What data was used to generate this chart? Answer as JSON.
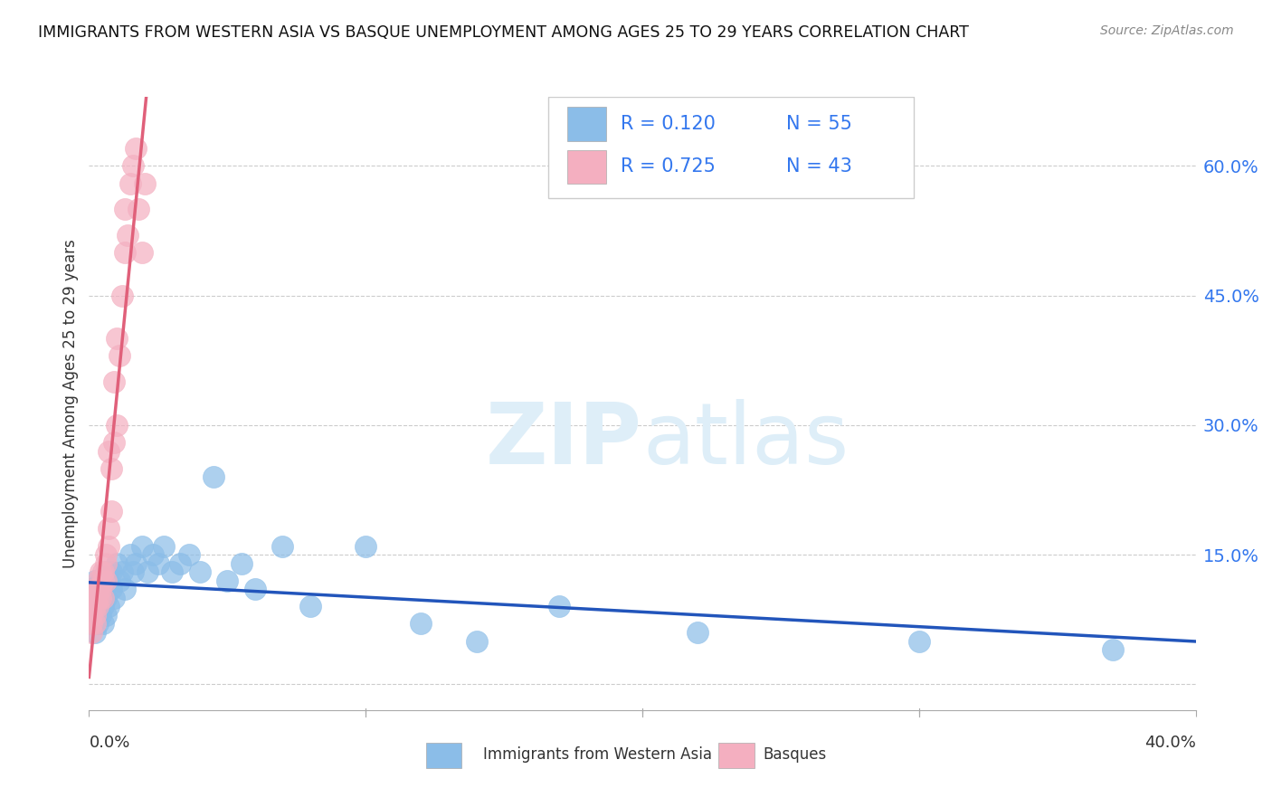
{
  "title": "IMMIGRANTS FROM WESTERN ASIA VS BASQUE UNEMPLOYMENT AMONG AGES 25 TO 29 YEARS CORRELATION CHART",
  "source": "Source: ZipAtlas.com",
  "ylabel": "Unemployment Among Ages 25 to 29 years",
  "yticks": [
    0.0,
    0.15,
    0.3,
    0.45,
    0.6
  ],
  "ytick_labels": [
    "",
    "15.0%",
    "30.0%",
    "45.0%",
    "60.0%"
  ],
  "xmin": 0.0,
  "xmax": 0.4,
  "ymin": -0.03,
  "ymax": 0.68,
  "blue_R": 0.12,
  "blue_N": 55,
  "pink_R": 0.725,
  "pink_N": 43,
  "blue_label": "Immigrants from Western Asia",
  "pink_label": "Basques",
  "blue_color": "#8bbde8",
  "pink_color": "#f4afc0",
  "blue_line_color": "#2255bb",
  "pink_line_color": "#e0607a",
  "legend_R_color": "#3377ee",
  "watermark_color": "#deeef8",
  "blue_scatter_x": [
    0.001,
    0.001,
    0.001,
    0.001,
    0.002,
    0.002,
    0.002,
    0.002,
    0.003,
    0.003,
    0.003,
    0.003,
    0.004,
    0.004,
    0.004,
    0.005,
    0.005,
    0.005,
    0.006,
    0.006,
    0.006,
    0.007,
    0.007,
    0.008,
    0.008,
    0.009,
    0.01,
    0.011,
    0.012,
    0.013,
    0.015,
    0.016,
    0.017,
    0.019,
    0.021,
    0.023,
    0.025,
    0.027,
    0.03,
    0.033,
    0.036,
    0.04,
    0.045,
    0.05,
    0.055,
    0.06,
    0.07,
    0.08,
    0.1,
    0.12,
    0.14,
    0.17,
    0.22,
    0.3,
    0.37
  ],
  "blue_scatter_y": [
    0.08,
    0.1,
    0.07,
    0.11,
    0.09,
    0.12,
    0.06,
    0.1,
    0.08,
    0.11,
    0.07,
    0.09,
    0.1,
    0.12,
    0.08,
    0.11,
    0.09,
    0.07,
    0.13,
    0.1,
    0.08,
    0.12,
    0.09,
    0.11,
    0.13,
    0.1,
    0.14,
    0.12,
    0.13,
    0.11,
    0.15,
    0.13,
    0.14,
    0.16,
    0.13,
    0.15,
    0.14,
    0.16,
    0.13,
    0.14,
    0.15,
    0.13,
    0.24,
    0.12,
    0.14,
    0.11,
    0.16,
    0.09,
    0.16,
    0.07,
    0.05,
    0.09,
    0.06,
    0.05,
    0.04
  ],
  "pink_scatter_x": [
    0.001,
    0.001,
    0.001,
    0.001,
    0.001,
    0.002,
    0.002,
    0.002,
    0.002,
    0.002,
    0.003,
    0.003,
    0.003,
    0.003,
    0.004,
    0.004,
    0.004,
    0.005,
    0.005,
    0.005,
    0.006,
    0.006,
    0.006,
    0.007,
    0.007,
    0.007,
    0.008,
    0.008,
    0.009,
    0.009,
    0.01,
    0.01,
    0.011,
    0.012,
    0.013,
    0.013,
    0.014,
    0.015,
    0.016,
    0.017,
    0.018,
    0.019,
    0.02
  ],
  "pink_scatter_y": [
    0.08,
    0.09,
    0.07,
    0.1,
    0.06,
    0.09,
    0.11,
    0.08,
    0.1,
    0.07,
    0.1,
    0.12,
    0.09,
    0.11,
    0.11,
    0.13,
    0.1,
    0.12,
    0.1,
    0.13,
    0.14,
    0.12,
    0.15,
    0.18,
    0.16,
    0.27,
    0.2,
    0.25,
    0.28,
    0.35,
    0.3,
    0.4,
    0.38,
    0.45,
    0.5,
    0.55,
    0.52,
    0.58,
    0.6,
    0.62,
    0.55,
    0.5,
    0.58
  ]
}
